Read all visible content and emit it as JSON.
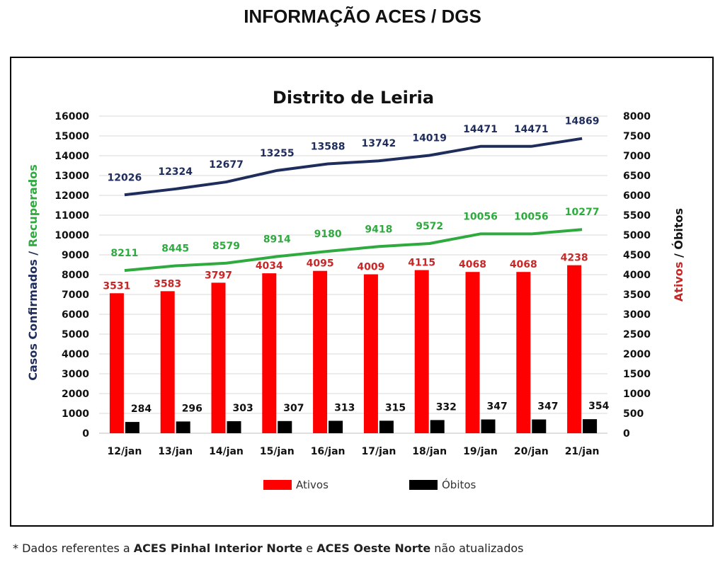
{
  "page": {
    "heading": "INFORMAÇÃO ACES / DGS"
  },
  "footnote": {
    "prefix": "* Dados referentes a ",
    "aces1": "ACES Pinhal Interior Norte",
    "mid": " e ",
    "aces2": "ACES Oeste Norte",
    "suffix": " não atualizados"
  },
  "colors": {
    "confirmados": "#1f2d5c",
    "recuperados": "#2eaa3f",
    "ativos": "#ff0000",
    "ativos_label": "#c62828",
    "obitos": "#000000",
    "grid": "#d9d9d9"
  },
  "chart_data": {
    "type": "bar",
    "title": "Distrito de Leiria",
    "categories": [
      "12/jan",
      "13/jan",
      "14/jan",
      "15/jan",
      "16/jan",
      "17/jan",
      "18/jan",
      "19/jan",
      "20/jan",
      "21/jan"
    ],
    "left_axis": {
      "label_part1": "Casos Confirmados / ",
      "label_part2": "Recuperados",
      "ylim": [
        0,
        16000
      ],
      "ticks": [
        "0",
        "1000",
        "2000",
        "3000",
        "4000",
        "5000",
        "6000",
        "7000",
        "8000",
        "9000",
        "10000",
        "11000",
        "12000",
        "13000",
        "14000",
        "15000",
        "16000"
      ]
    },
    "right_axis": {
      "label_part1": "Ativos",
      "label_part2": " / Óbitos",
      "ylim": [
        0,
        8000
      ],
      "ticks": [
        "0",
        "500",
        "1000",
        "1500",
        "2000",
        "2500",
        "3000",
        "3500",
        "4000",
        "4500",
        "5000",
        "5500",
        "6000",
        "6500",
        "7000",
        "7500",
        "8000"
      ]
    },
    "series": [
      {
        "name": "Casos Confirmados",
        "type": "line",
        "axis": "left",
        "values": [
          12026,
          12324,
          12677,
          13255,
          13588,
          13742,
          14019,
          14471,
          14471,
          14869
        ]
      },
      {
        "name": "Recuperados",
        "type": "line",
        "axis": "left",
        "values": [
          8211,
          8445,
          8579,
          8914,
          9180,
          9418,
          9572,
          10056,
          10056,
          10277
        ]
      },
      {
        "name": "Ativos",
        "type": "bar",
        "axis": "right",
        "values": [
          3531,
          3583,
          3797,
          4034,
          4095,
          4009,
          4115,
          4068,
          4068,
          4238
        ]
      },
      {
        "name": "Óbitos",
        "type": "bar",
        "axis": "right",
        "values": [
          284,
          296,
          303,
          307,
          313,
          315,
          332,
          347,
          347,
          354
        ]
      }
    ],
    "legend": {
      "position": "bottom",
      "items": [
        "Ativos",
        "Óbitos"
      ]
    },
    "grid": true
  }
}
